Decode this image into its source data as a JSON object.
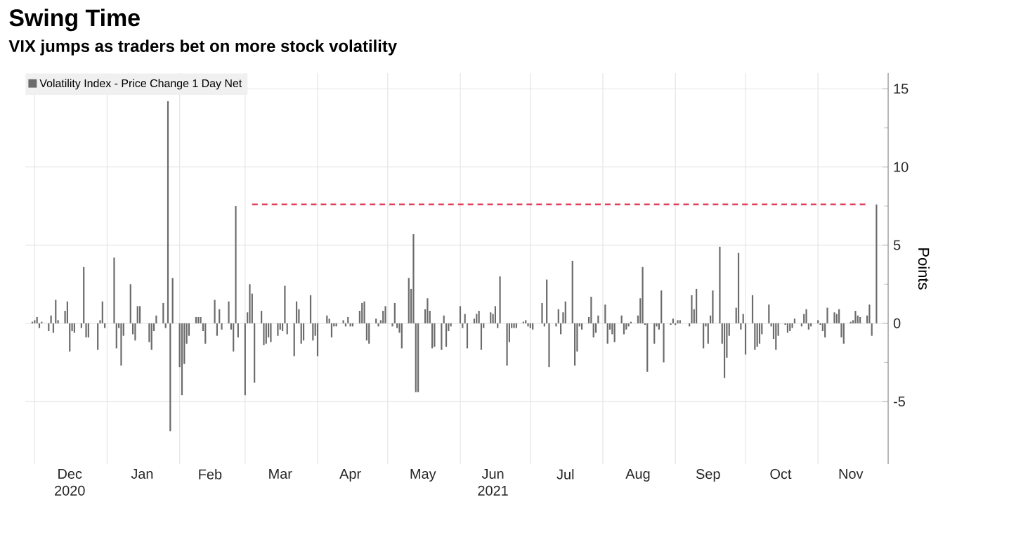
{
  "chart_data": {
    "type": "bar",
    "title": "Swing Time",
    "subtitle": "VIX jumps as traders bet on more stock volatility",
    "ylabel": "Points",
    "x": [
      "2020-11-30",
      "2020-12-01",
      "2020-12-02",
      "2020-12-03",
      "2020-12-04",
      "2020-12-07",
      "2020-12-08",
      "2020-12-09",
      "2020-12-10",
      "2020-12-11",
      "2020-12-14",
      "2020-12-15",
      "2020-12-16",
      "2020-12-17",
      "2020-12-18",
      "2020-12-21",
      "2020-12-22",
      "2020-12-23",
      "2020-12-24",
      "2020-12-28",
      "2020-12-29",
      "2020-12-30",
      "2020-12-31",
      "2021-01-04",
      "2021-01-05",
      "2021-01-06",
      "2021-01-07",
      "2021-01-08",
      "2021-01-11",
      "2021-01-12",
      "2021-01-13",
      "2021-01-14",
      "2021-01-15",
      "2021-01-19",
      "2021-01-20",
      "2021-01-21",
      "2021-01-22",
      "2021-01-25",
      "2021-01-26",
      "2021-01-27",
      "2021-01-28",
      "2021-01-29",
      "2021-02-01",
      "2021-02-02",
      "2021-02-03",
      "2021-02-04",
      "2021-02-05",
      "2021-02-08",
      "2021-02-09",
      "2021-02-10",
      "2021-02-11",
      "2021-02-12",
      "2021-02-16",
      "2021-02-17",
      "2021-02-18",
      "2021-02-19",
      "2021-02-22",
      "2021-02-23",
      "2021-02-24",
      "2021-02-25",
      "2021-02-26",
      "2021-03-01",
      "2021-03-02",
      "2021-03-03",
      "2021-03-04",
      "2021-03-05",
      "2021-03-08",
      "2021-03-09",
      "2021-03-10",
      "2021-03-11",
      "2021-03-12",
      "2021-03-15",
      "2021-03-16",
      "2021-03-17",
      "2021-03-18",
      "2021-03-19",
      "2021-03-22",
      "2021-03-23",
      "2021-03-24",
      "2021-03-25",
      "2021-03-26",
      "2021-03-29",
      "2021-03-30",
      "2021-03-31",
      "2021-04-01",
      "2021-04-05",
      "2021-04-06",
      "2021-04-07",
      "2021-04-08",
      "2021-04-09",
      "2021-04-12",
      "2021-04-13",
      "2021-04-14",
      "2021-04-15",
      "2021-04-16",
      "2021-04-19",
      "2021-04-20",
      "2021-04-21",
      "2021-04-22",
      "2021-04-23",
      "2021-04-26",
      "2021-04-27",
      "2021-04-28",
      "2021-04-29",
      "2021-04-30",
      "2021-05-03",
      "2021-05-04",
      "2021-05-05",
      "2021-05-06",
      "2021-05-07",
      "2021-05-10",
      "2021-05-11",
      "2021-05-12",
      "2021-05-13",
      "2021-05-14",
      "2021-05-17",
      "2021-05-18",
      "2021-05-19",
      "2021-05-20",
      "2021-05-21",
      "2021-05-24",
      "2021-05-25",
      "2021-05-26",
      "2021-05-27",
      "2021-05-28",
      "2021-06-01",
      "2021-06-02",
      "2021-06-03",
      "2021-06-04",
      "2021-06-07",
      "2021-06-08",
      "2021-06-09",
      "2021-06-10",
      "2021-06-11",
      "2021-06-14",
      "2021-06-15",
      "2021-06-16",
      "2021-06-17",
      "2021-06-18",
      "2021-06-21",
      "2021-06-22",
      "2021-06-23",
      "2021-06-24",
      "2021-06-25",
      "2021-06-28",
      "2021-06-29",
      "2021-06-30",
      "2021-07-01",
      "2021-07-02",
      "2021-07-06",
      "2021-07-07",
      "2021-07-08",
      "2021-07-09",
      "2021-07-12",
      "2021-07-13",
      "2021-07-14",
      "2021-07-15",
      "2021-07-16",
      "2021-07-19",
      "2021-07-20",
      "2021-07-21",
      "2021-07-22",
      "2021-07-23",
      "2021-07-26",
      "2021-07-27",
      "2021-07-28",
      "2021-07-29",
      "2021-07-30",
      "2021-08-02",
      "2021-08-03",
      "2021-08-04",
      "2021-08-05",
      "2021-08-06",
      "2021-08-09",
      "2021-08-10",
      "2021-08-11",
      "2021-08-12",
      "2021-08-13",
      "2021-08-16",
      "2021-08-17",
      "2021-08-18",
      "2021-08-19",
      "2021-08-20",
      "2021-08-23",
      "2021-08-24",
      "2021-08-25",
      "2021-08-26",
      "2021-08-27",
      "2021-08-30",
      "2021-08-31",
      "2021-09-01",
      "2021-09-02",
      "2021-09-03",
      "2021-09-07",
      "2021-09-08",
      "2021-09-09",
      "2021-09-10",
      "2021-09-13",
      "2021-09-14",
      "2021-09-15",
      "2021-09-16",
      "2021-09-17",
      "2021-09-20",
      "2021-09-21",
      "2021-09-22",
      "2021-09-23",
      "2021-09-24",
      "2021-09-27",
      "2021-09-28",
      "2021-09-29",
      "2021-09-30",
      "2021-10-01",
      "2021-10-04",
      "2021-10-05",
      "2021-10-06",
      "2021-10-07",
      "2021-10-08",
      "2021-10-11",
      "2021-10-12",
      "2021-10-13",
      "2021-10-14",
      "2021-10-15",
      "2021-10-18",
      "2021-10-19",
      "2021-10-20",
      "2021-10-21",
      "2021-10-22",
      "2021-10-25",
      "2021-10-26",
      "2021-10-27",
      "2021-10-28",
      "2021-10-29",
      "2021-11-01",
      "2021-11-02",
      "2021-11-03",
      "2021-11-04",
      "2021-11-05",
      "2021-11-08",
      "2021-11-09",
      "2021-11-10",
      "2021-11-11",
      "2021-11-12",
      "2021-11-15",
      "2021-11-16",
      "2021-11-17",
      "2021-11-18",
      "2021-11-19",
      "2021-11-22",
      "2021-11-23",
      "2021-11-24",
      "2021-11-26"
    ],
    "series": [
      {
        "name": "Volatility Index - Price Change 1 Day Net",
        "color": "#6b6b6b",
        "values": [
          0.1,
          0.2,
          0.4,
          -0.3,
          0.1,
          -0.5,
          0.5,
          -0.6,
          1.5,
          0.2,
          0.8,
          1.4,
          -1.8,
          -0.5,
          -0.6,
          -0.3,
          3.6,
          -0.9,
          -0.9,
          -1.7,
          0.2,
          1.4,
          -0.3,
          4.2,
          -1.6,
          -0.3,
          -2.7,
          -0.8,
          2.5,
          -0.7,
          -1.1,
          1.1,
          1.1,
          -1.2,
          -1.7,
          -0.5,
          0.5,
          1.3,
          -0.3,
          14.2,
          -6.9,
          2.9,
          -2.8,
          -4.6,
          -2.6,
          -1.3,
          -0.8,
          0.4,
          0.4,
          0.4,
          -0.5,
          -1.3,
          1.5,
          -0.8,
          0.9,
          -0.4,
          1.4,
          -0.4,
          -1.8,
          7.5,
          -0.9,
          -4.6,
          0.7,
          2.5,
          1.9,
          -3.8,
          0.8,
          -1.4,
          -1.3,
          -0.9,
          -1.2,
          -0.8,
          -0.4,
          -0.5,
          2.4,
          -0.7,
          -2.1,
          1.4,
          0.9,
          -1.3,
          -1.1,
          1.8,
          -1.1,
          -0.8,
          -2.1,
          0.5,
          0.3,
          -0.9,
          -0.2,
          -0.2,
          0.2,
          -0.2,
          0.4,
          -0.2,
          -0.2,
          0.8,
          1.3,
          1.4,
          -1.1,
          -1.3,
          0.3,
          -0.2,
          0.2,
          0.8,
          1.1,
          -0.2,
          1.3,
          -0.3,
          -0.6,
          -1.6,
          2.9,
          2.2,
          5.7,
          -4.4,
          -4.4,
          0.9,
          1.6,
          0.8,
          -1.6,
          -1.5,
          -1.7,
          0.5,
          -1.5,
          -0.5,
          -0.2,
          1.1,
          -0.3,
          0.6,
          -1.6,
          0.3,
          0.6,
          0.8,
          -1.7,
          -0.3,
          0.7,
          0.6,
          1.1,
          -0.3,
          3.0,
          -2.7,
          -1.2,
          -0.3,
          -0.3,
          -0.3,
          0.1,
          0.2,
          -0.2,
          -0.3,
          -0.4,
          1.3,
          -0.2,
          2.8,
          -2.8,
          -0.2,
          0.9,
          -0.7,
          0.7,
          1.4,
          4.0,
          -2.7,
          -1.8,
          -0.2,
          -0.4,
          0.4,
          1.7,
          -0.9,
          -0.6,
          0.5,
          1.2,
          -1.3,
          -0.4,
          -0.7,
          -1.2,
          0.5,
          -0.7,
          -0.4,
          -0.2,
          0.1,
          0.5,
          1.6,
          3.6,
          -0.1,
          -3.1,
          -1.3,
          -0.2,
          -0.4,
          2.1,
          -2.5,
          -0.1,
          0.3,
          -0.1,
          0.2,
          0.2,
          -0.2,
          1.8,
          0.9,
          2.2,
          -1.6,
          -0.2,
          -1.3,
          0.5,
          2.1,
          4.9,
          -1.3,
          -3.5,
          -2.2,
          -0.8,
          1.0,
          4.5,
          -0.4,
          0.6,
          -2.0,
          1.8,
          -1.7,
          -1.5,
          -1.3,
          -0.7,
          1.2,
          -0.2,
          -1.0,
          -1.7,
          -0.8,
          -0.1,
          -0.6,
          -0.5,
          -0.3,
          0.3,
          -0.2,
          0.6,
          0.9,
          -0.4,
          -0.2,
          0.2,
          -0.1,
          -0.5,
          -0.9,
          1.0,
          0.7,
          0.6,
          0.9,
          -0.9,
          -1.3,
          0.1,
          0.2,
          0.8,
          0.5,
          0.4,
          0.5,
          1.2,
          -0.8,
          7.6
        ]
      },
      {
        "type": "line",
        "color": "#e0405a",
        "line_style": "dashed",
        "x": [
          "2021-03-04",
          "2021-11-23"
        ],
        "values": [
          7.6,
          7.6
        ]
      }
    ],
    "xlim": [
      "2020-11-27",
      "2021-12-01"
    ],
    "xticks": [
      {
        "value": "2020-12-01",
        "label": null
      },
      {
        "value": "2021-01-01",
        "label": null
      },
      {
        "value": "2021-02-01",
        "label": null
      },
      {
        "value": "2021-03-01",
        "label": null
      },
      {
        "value": "2021-04-01",
        "label": null
      },
      {
        "value": "2021-05-01",
        "label": null
      },
      {
        "value": "2021-06-01",
        "label": null
      },
      {
        "value": "2021-07-01",
        "label": null
      },
      {
        "value": "2021-08-01",
        "label": null
      },
      {
        "value": "2021-09-01",
        "label": null
      },
      {
        "value": "2021-10-01",
        "label": null
      },
      {
        "value": "2021-11-01",
        "label": null
      },
      {
        "value": "2021-12-01",
        "label": null
      },
      {
        "value": "2020-12-16",
        "label": "Dec\n2020"
      },
      {
        "value": "2021-01-16",
        "label": "Jan"
      },
      {
        "value": "2021-02-14",
        "label": "Feb"
      },
      {
        "value": "2021-03-16",
        "label": "Mar"
      },
      {
        "value": "2021-04-15",
        "label": "Apr"
      },
      {
        "value": "2021-05-16",
        "label": "May"
      },
      {
        "value": "2021-06-15",
        "label": "Jun\n2021"
      },
      {
        "value": "2021-07-16",
        "label": "Jul"
      },
      {
        "value": "2021-08-16",
        "label": "Aug"
      },
      {
        "value": "2021-09-15",
        "label": "Sep"
      },
      {
        "value": "2021-10-16",
        "label": "Oct"
      },
      {
        "value": "2021-11-15",
        "label": "Nov"
      }
    ],
    "ylim": [
      -9,
      16
    ],
    "yticks": [
      -5,
      0,
      5,
      10,
      15
    ],
    "grid": true,
    "legend": "top left"
  }
}
